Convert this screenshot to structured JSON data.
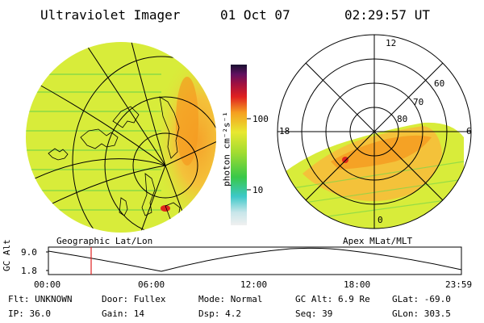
{
  "header": {
    "instrument": "Ultraviolet Imager",
    "date": "01 Oct 07",
    "time": "02:29:57 UT"
  },
  "colors": {
    "auroral_low": "#d8ec3a",
    "auroral_mid": "#f4c23a",
    "auroral_high": "#f59a20",
    "auroral_peak": "#e0281c",
    "stripe": "#7ad84a"
  },
  "colorbar": {
    "unit_label": "photon cm⁻²s⁻¹",
    "tick_100": "100",
    "tick_10": "10"
  },
  "polar_plot": {
    "label_12": "12",
    "label_18": "18",
    "label_6": "6",
    "label_0": "0",
    "label_60": "60",
    "label_70": "70",
    "label_80": "80"
  },
  "panel_labels": {
    "left": "Geographic Lat/Lon",
    "right": "Apex MLat/MLT"
  },
  "timeline": {
    "ylabel": "GC Alt",
    "ytick_top": "9.0",
    "ytick_bottom": "1.8",
    "xticks": [
      "00:00",
      "06:00",
      "12:00",
      "18:00",
      "23:59"
    ]
  },
  "info": {
    "flt": "Flt: UNKNOWN",
    "door": "Door: Fullex",
    "mode": "Mode: Normal",
    "gc_alt": "GC Alt: 6.9 Re",
    "glat": "GLat: -69.0",
    "ip": "IP: 36.0",
    "gain": "Gain: 14",
    "dsp": "Dsp:    4.2",
    "seq": "Seq: 39",
    "glon": "GLon: 303.5"
  }
}
